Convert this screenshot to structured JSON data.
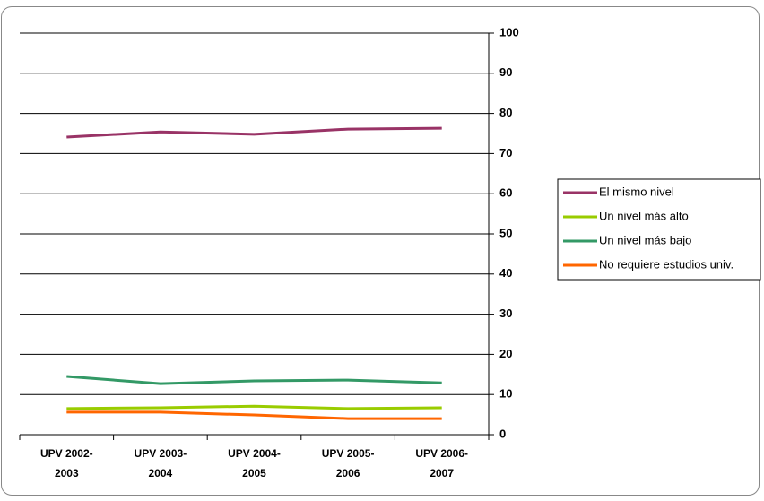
{
  "chart_data": {
    "type": "line",
    "categories": [
      "UPV 2002-2003",
      "UPV 2003-2004",
      "UPV 2004-2005",
      "UPV 2005-2006",
      "UPV 2006-2007"
    ],
    "series": [
      {
        "name": "El mismo nivel",
        "color": "#993366",
        "values": [
          74.1,
          75.4,
          74.8,
          76.1,
          76.3
        ]
      },
      {
        "name": "Un nivel más alto",
        "color": "#99cc00",
        "values": [
          6.5,
          6.7,
          7.1,
          6.5,
          6.7
        ]
      },
      {
        "name": "Un nivel más bajo",
        "color": "#339966",
        "values": [
          14.5,
          12.7,
          13.4,
          13.6,
          12.9
        ]
      },
      {
        "name": "No requiere estudios univ.",
        "color": "#ff6600",
        "values": [
          5.6,
          5.6,
          4.9,
          4.0,
          4.0
        ]
      }
    ],
    "ylim": [
      0,
      100
    ],
    "yticks": [
      0,
      10,
      20,
      30,
      40,
      50,
      60,
      70,
      80,
      90,
      100
    ],
    "grid": true,
    "legend": "right"
  }
}
